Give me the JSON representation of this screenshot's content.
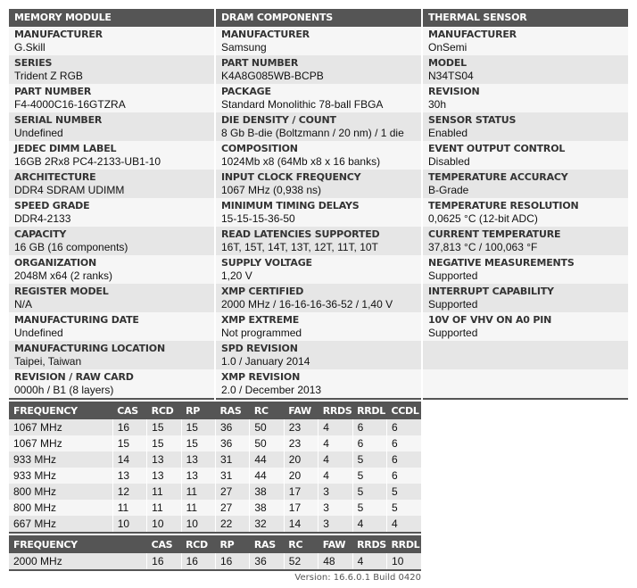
{
  "columns": [
    {
      "title": "MEMORY MODULE",
      "items": [
        {
          "label": "MANUFACTURER",
          "value": "G.Skill"
        },
        {
          "label": "SERIES",
          "value": "Trident Z RGB"
        },
        {
          "label": "PART NUMBER",
          "value": "F4-4000C16-16GTZRA"
        },
        {
          "label": "SERIAL NUMBER",
          "value": "Undefined"
        },
        {
          "label": "JEDEC DIMM LABEL",
          "value": "16GB 2Rx8 PC4-2133-UB1-10"
        },
        {
          "label": "ARCHITECTURE",
          "value": "DDR4 SDRAM UDIMM"
        },
        {
          "label": "SPEED GRADE",
          "value": "DDR4-2133"
        },
        {
          "label": "CAPACITY",
          "value": "16 GB (16 components)"
        },
        {
          "label": "ORGANIZATION",
          "value": "2048M x64 (2 ranks)"
        },
        {
          "label": "REGISTER MODEL",
          "value": "N/A"
        },
        {
          "label": "MANUFACTURING DATE",
          "value": "Undefined"
        },
        {
          "label": "MANUFACTURING LOCATION",
          "value": "Taipei, Taiwan"
        },
        {
          "label": "REVISION / RAW CARD",
          "value": "0000h / B1 (8 layers)"
        }
      ]
    },
    {
      "title": "DRAM COMPONENTS",
      "items": [
        {
          "label": "MANUFACTURER",
          "value": "Samsung"
        },
        {
          "label": "PART NUMBER",
          "value": "K4A8G085WB-BCPB"
        },
        {
          "label": "PACKAGE",
          "value": "Standard Monolithic 78-ball FBGA"
        },
        {
          "label": "DIE DENSITY / COUNT",
          "value": "8 Gb B-die (Boltzmann / 20 nm) / 1 die"
        },
        {
          "label": "COMPOSITION",
          "value": "1024Mb x8 (64Mb x8 x 16 banks)"
        },
        {
          "label": "INPUT CLOCK FREQUENCY",
          "value": "1067 MHz (0,938 ns)"
        },
        {
          "label": "MINIMUM TIMING DELAYS",
          "value": "15-15-15-36-50"
        },
        {
          "label": "READ LATENCIES SUPPORTED",
          "value": "16T, 15T, 14T, 13T, 12T, 11T, 10T"
        },
        {
          "label": "SUPPLY VOLTAGE",
          "value": "1,20 V"
        },
        {
          "label": "XMP CERTIFIED",
          "value": "2000 MHz / 16-16-16-36-52 / 1,40 V"
        },
        {
          "label": "XMP EXTREME",
          "value": "Not programmed"
        },
        {
          "label": "SPD REVISION",
          "value": "1.0 / January 2014"
        },
        {
          "label": "XMP REVISION",
          "value": "2.0 / December 2013"
        }
      ]
    },
    {
      "title": "THERMAL SENSOR",
      "items": [
        {
          "label": "MANUFACTURER",
          "value": "OnSemi"
        },
        {
          "label": "MODEL",
          "value": "N34TS04"
        },
        {
          "label": "REVISION",
          "value": "30h"
        },
        {
          "label": "SENSOR STATUS",
          "value": "Enabled"
        },
        {
          "label": "EVENT OUTPUT CONTROL",
          "value": "Disabled"
        },
        {
          "label": "TEMPERATURE ACCURACY",
          "value": "B-Grade"
        },
        {
          "label": "TEMPERATURE RESOLUTION",
          "value": "0,0625 °C (12-bit ADC)"
        },
        {
          "label": "CURRENT TEMPERATURE",
          "value": "37,813 °C / 100,063 °F"
        },
        {
          "label": "NEGATIVE MEASUREMENTS",
          "value": "Supported"
        },
        {
          "label": "INTERRUPT CAPABILITY",
          "value": "Supported"
        },
        {
          "label": "10V OF VHV ON A0 PIN",
          "value": "Supported"
        },
        {
          "label": "",
          "value": ""
        },
        {
          "label": "",
          "value": ""
        }
      ]
    }
  ],
  "jedec_timings": {
    "headers": [
      "FREQUENCY",
      "CAS",
      "RCD",
      "RP",
      "RAS",
      "RC",
      "FAW",
      "RRDS",
      "RRDL",
      "CCDL"
    ],
    "rows": [
      [
        "1067 MHz",
        "16",
        "15",
        "15",
        "36",
        "50",
        "23",
        "4",
        "6",
        "6"
      ],
      [
        "1067 MHz",
        "15",
        "15",
        "15",
        "36",
        "50",
        "23",
        "4",
        "6",
        "6"
      ],
      [
        "933 MHz",
        "14",
        "13",
        "13",
        "31",
        "44",
        "20",
        "4",
        "5",
        "6"
      ],
      [
        "933 MHz",
        "13",
        "13",
        "13",
        "31",
        "44",
        "20",
        "4",
        "5",
        "6"
      ],
      [
        "800 MHz",
        "12",
        "11",
        "11",
        "27",
        "38",
        "17",
        "3",
        "5",
        "5"
      ],
      [
        "800 MHz",
        "11",
        "11",
        "11",
        "27",
        "38",
        "17",
        "3",
        "5",
        "5"
      ],
      [
        "667 MHz",
        "10",
        "10",
        "10",
        "22",
        "32",
        "14",
        "3",
        "4",
        "4"
      ]
    ]
  },
  "xmp_timings": {
    "headers": [
      "FREQUENCY",
      "CAS",
      "RCD",
      "RP",
      "RAS",
      "RC",
      "FAW",
      "RRDS",
      "RRDL"
    ],
    "rows": [
      [
        "2000 MHz",
        "16",
        "16",
        "16",
        "36",
        "52",
        "48",
        "4",
        "10"
      ]
    ]
  },
  "version": "Version: 16.6.0.1 Build 0420"
}
